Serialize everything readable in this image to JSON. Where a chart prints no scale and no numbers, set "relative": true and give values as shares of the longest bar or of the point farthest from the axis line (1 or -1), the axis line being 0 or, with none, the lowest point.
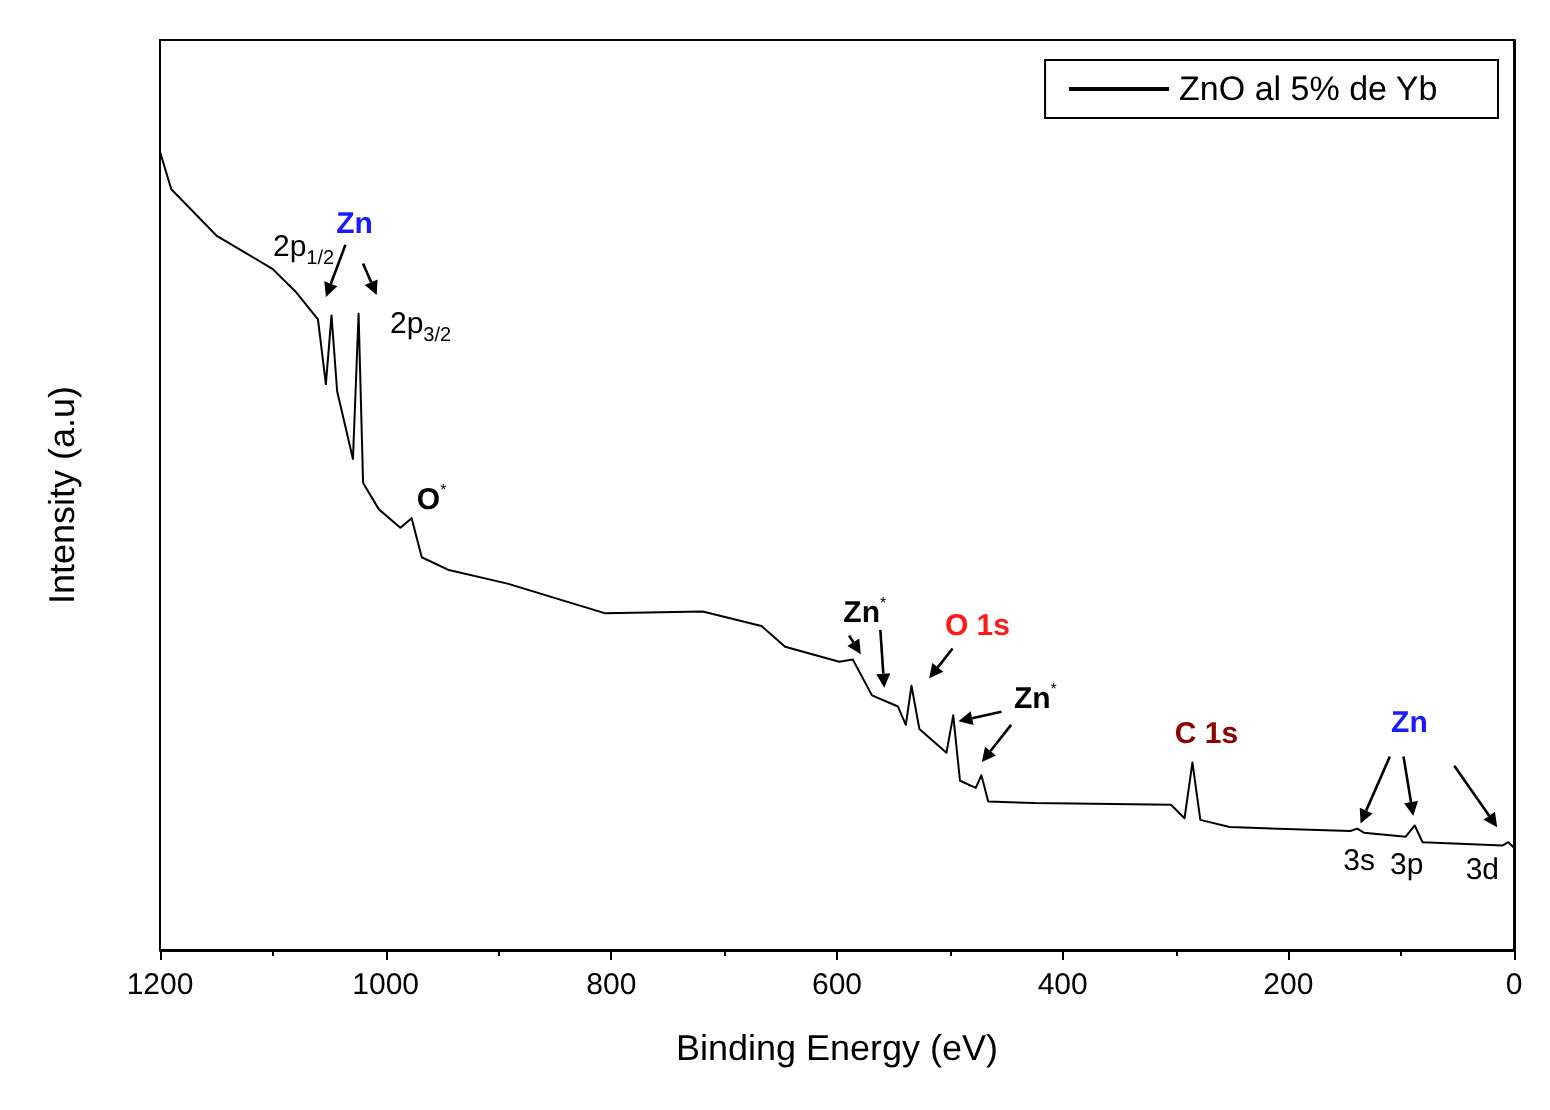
{
  "chart_data": {
    "type": "line",
    "relative": true,
    "xlabel": "Binding Energy (eV)",
    "ylabel": "Intensity (a.u)",
    "xlim": [
      1200,
      0
    ],
    "xticks": [
      1200,
      1000,
      800,
      600,
      400,
      200,
      0
    ],
    "legend": "top right",
    "grid": false,
    "marker": "none",
    "line_style": "solid",
    "series": [
      {
        "name": "ZnO al 5% de Yb",
        "color": "#000000",
        "x": [
          1200,
          1190,
          1150,
          1100,
          1080,
          1060,
          1053,
          1048,
          1043,
          1029,
          1024,
          1020,
          1006,
          987,
          977,
          968,
          944,
          892,
          806,
          719,
          667,
          646,
          598,
          586,
          569,
          546,
          539,
          534,
          527,
          503,
          497,
          491,
          477,
          472,
          466,
          425,
          304,
          292,
          285,
          278,
          252,
          145,
          139,
          133,
          96,
          88,
          81,
          10,
          5,
          0
        ],
        "values": [
          1.0,
          0.953,
          0.895,
          0.853,
          0.825,
          0.79,
          0.709,
          0.795,
          0.7,
          0.615,
          0.797,
          0.585,
          0.552,
          0.529,
          0.541,
          0.492,
          0.476,
          0.459,
          0.422,
          0.424,
          0.406,
          0.38,
          0.361,
          0.364,
          0.319,
          0.305,
          0.282,
          0.331,
          0.277,
          0.247,
          0.294,
          0.212,
          0.203,
          0.219,
          0.186,
          0.184,
          0.182,
          0.165,
          0.235,
          0.163,
          0.154,
          0.149,
          0.152,
          0.147,
          0.142,
          0.156,
          0.135,
          0.131,
          0.135,
          0.128
        ]
      }
    ],
    "annotations": [
      {
        "text": "Zn",
        "x": 1024,
        "y": 0.797
      },
      {
        "text": "2p$_{1/2}$",
        "x": 1048,
        "y": 0.795
      },
      {
        "text": "2p$_{3/2}$",
        "x": 1024,
        "y": 0.797
      },
      {
        "text": "O$^{*}$",
        "x": 977,
        "y": 0.541
      },
      {
        "text": "Zn$^{*}$",
        "x": 586,
        "y": 0.364
      },
      {
        "text": "O 1s",
        "x": 534,
        "y": 0.331
      },
      {
        "text": "Zn$^{*}$",
        "x": 472,
        "y": 0.219
      },
      {
        "text": "C 1s",
        "x": 285,
        "y": 0.235
      },
      "Zn",
      {
        "text": "3s",
        "x": 139,
        "y": 0.152
      },
      {
        "text": "3p",
        "x": 88,
        "y": 0.156
      },
      {
        "text": "3d",
        "x": 5,
        "y": 0.135
      }
    ]
  }
}
